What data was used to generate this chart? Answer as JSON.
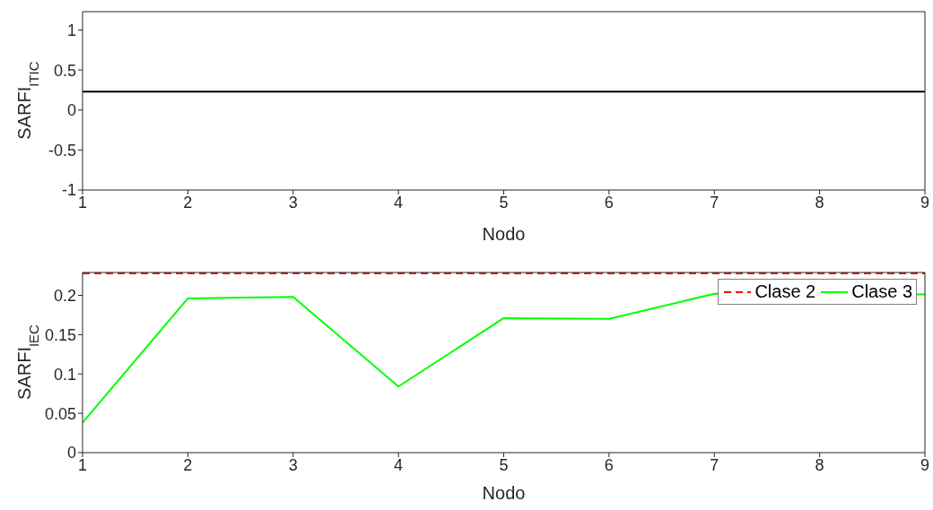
{
  "chart_data": [
    {
      "type": "line",
      "x": [
        1,
        2,
        3,
        4,
        5,
        6,
        7,
        8,
        9
      ],
      "xlabel": "Nodo",
      "ylabel": "SARFI$_{ITIC}$",
      "xlim": [
        1,
        9
      ],
      "xticks": [
        1,
        2,
        3,
        4,
        5,
        6,
        7,
        8,
        9
      ],
      "ylim": [
        -1,
        1.23
      ],
      "yticks": [
        -1,
        -0.5,
        0,
        0.5,
        1
      ],
      "grid": false,
      "legend": false,
      "series": [
        {
          "color": "#000000",
          "values": [
            0.23,
            0.23,
            0.23,
            0.23,
            0.23,
            0.23,
            0.23,
            0.23,
            0.23
          ],
          "line_style": "solid"
        }
      ]
    },
    {
      "type": "line",
      "x": [
        1,
        2,
        3,
        4,
        5,
        6,
        7,
        8,
        9
      ],
      "xlabel": "Nodo",
      "ylabel": "SARFI$_{IEC}$",
      "xlim": [
        1,
        9
      ],
      "xticks": [
        1,
        2,
        3,
        4,
        5,
        6,
        7,
        8,
        9
      ],
      "ylim": [
        0,
        0.229
      ],
      "yticks": [
        0,
        0.05,
        0.1,
        0.15,
        0.2
      ],
      "grid": false,
      "legend": "top right",
      "series": [
        {
          "name": "Clase 2",
          "color": "#ff0000",
          "values": [
            0.228,
            0.228,
            0.228,
            0.228,
            0.228,
            0.228,
            0.228,
            0.228,
            0.228
          ],
          "line_style": "dashed"
        },
        {
          "name": "Clase 3",
          "color": "#00ff00",
          "values": [
            0.038,
            0.196,
            0.198,
            0.084,
            0.171,
            0.17,
            0.202,
            null,
            0.201
          ],
          "line_style": "solid"
        }
      ]
    }
  ]
}
